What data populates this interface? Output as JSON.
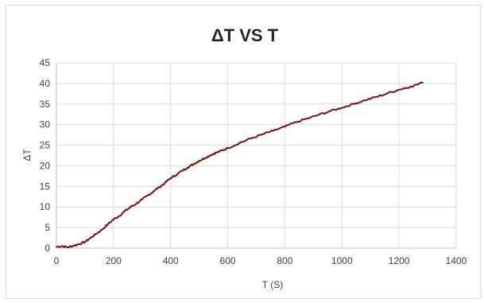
{
  "chart_data": {
    "type": "line",
    "title": "ΔT VS T",
    "xlabel": "T (S)",
    "ylabel": "ΔT",
    "xlim": [
      0,
      1400
    ],
    "ylim": [
      0,
      45
    ],
    "x_ticks": [
      0,
      200,
      400,
      600,
      800,
      1000,
      1200,
      1400
    ],
    "y_ticks": [
      0,
      5,
      10,
      15,
      20,
      25,
      30,
      35,
      40,
      45
    ],
    "grid": true,
    "legend": "none",
    "series": [
      {
        "color": "#7b1010",
        "x": [
          0,
          20,
          40,
          60,
          80,
          100,
          120,
          140,
          160,
          180,
          200,
          220,
          240,
          260,
          280,
          300,
          320,
          340,
          360,
          380,
          400,
          420,
          440,
          460,
          480,
          500,
          520,
          540,
          560,
          580,
          600,
          640,
          680,
          720,
          760,
          800,
          840,
          880,
          920,
          960,
          1000,
          1040,
          1080,
          1120,
          1160,
          1200,
          1240,
          1283
        ],
        "y": [
          0.3,
          0.5,
          0.2,
          0.6,
          1.0,
          1.5,
          2.5,
          3.5,
          4.5,
          5.8,
          7.0,
          7.8,
          9.0,
          10.0,
          10.8,
          11.8,
          12.8,
          13.8,
          14.8,
          15.8,
          17.0,
          17.8,
          18.8,
          19.6,
          20.4,
          21.2,
          21.9,
          22.6,
          23.2,
          23.7,
          24.3,
          25.5,
          26.6,
          27.6,
          28.5,
          29.5,
          30.6,
          31.5,
          32.4,
          33.3,
          34.1,
          35.0,
          35.9,
          36.7,
          37.6,
          38.5,
          39.2,
          40.2
        ]
      }
    ]
  }
}
